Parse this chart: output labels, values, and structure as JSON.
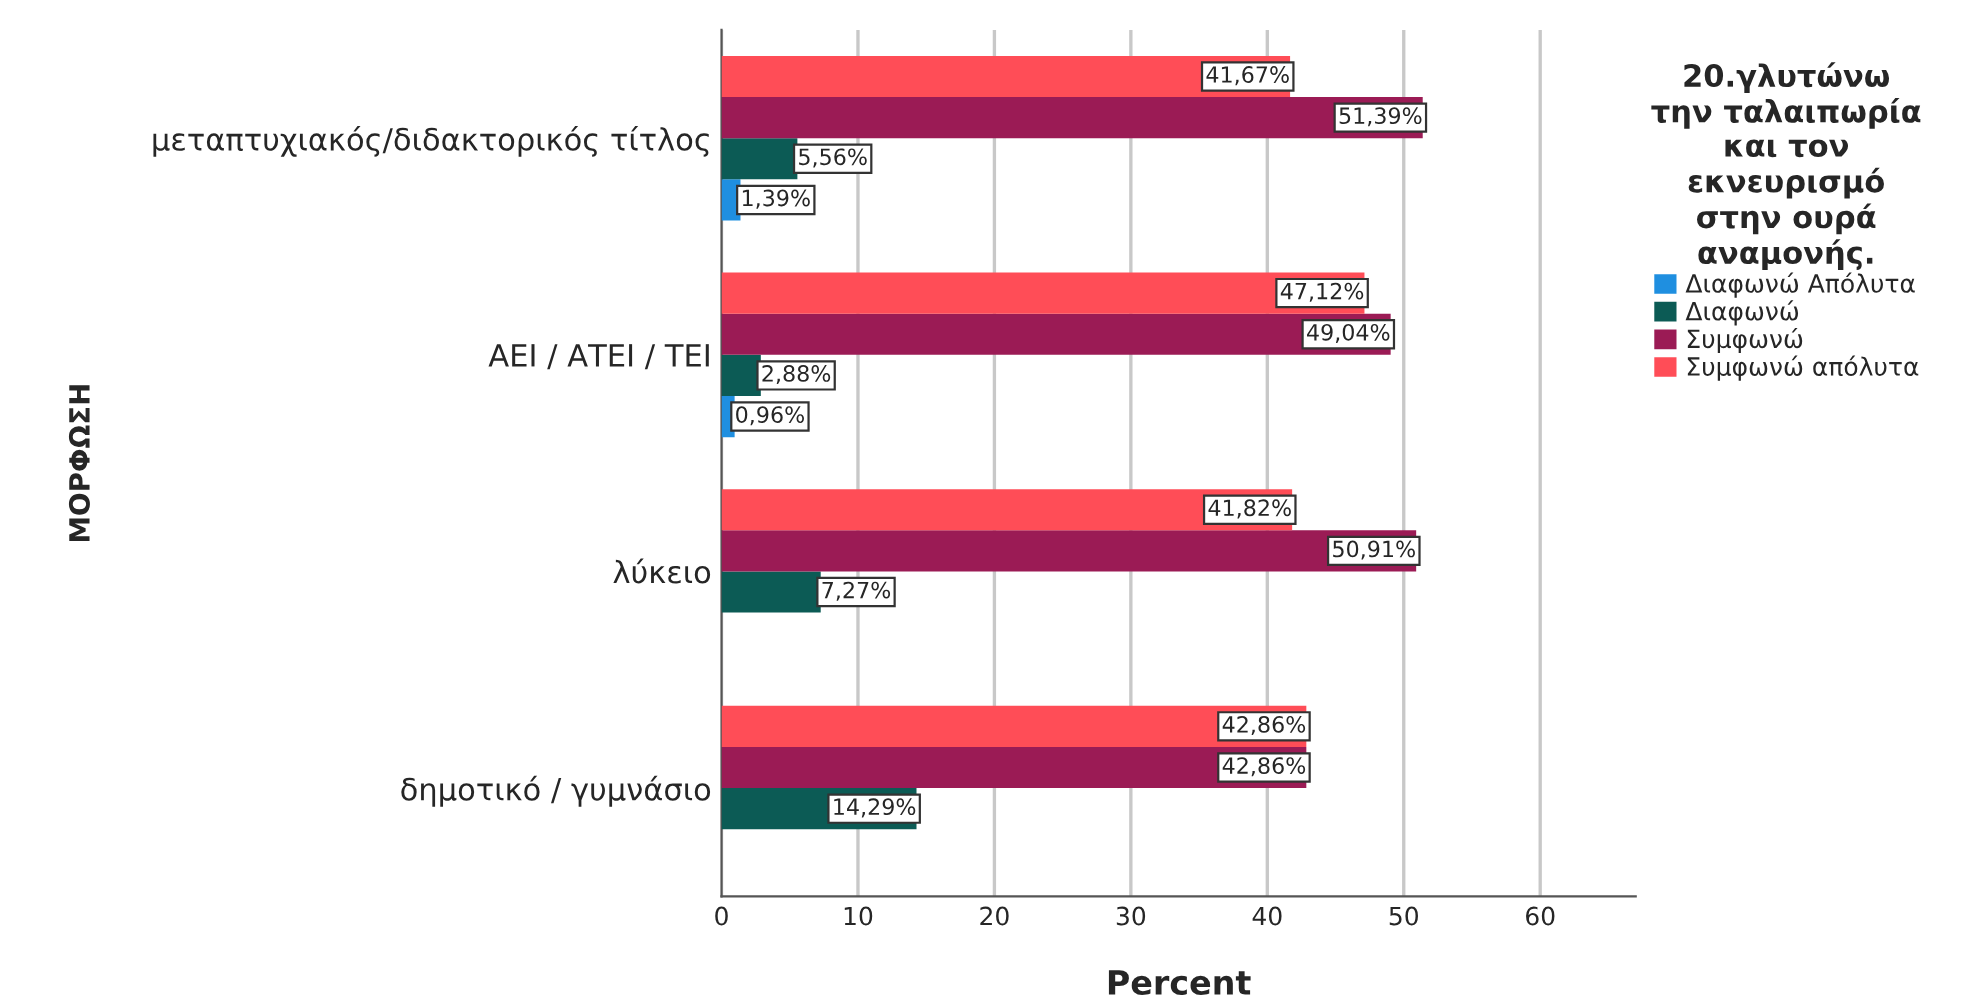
{
  "chart_data": {
    "type": "bar",
    "orientation": "horizontal",
    "categories": [
      "μεταπτυχιακός/διδακτορικός τίτλος",
      "ΑΕΙ / ΑΤΕΙ / ΤΕΙ",
      "λύκειο",
      "δημοτικό / γυμνάσιο"
    ],
    "xlabel": "Percent",
    "ylabel": "ΜΟΡΦΩΣΗ",
    "legend_title": "20.γλυτώνω\nτην ταλαιπωρία\nκαι τον\nεκνευρισμό\nστην ουρά\nαναμονής.",
    "legend": "right",
    "xlim": [
      0,
      67
    ],
    "xticks": [
      0,
      10,
      20,
      30,
      40,
      50,
      60
    ],
    "grid": "x",
    "series": [
      {
        "name": "Διαφωνώ Απόλυτα",
        "color": "#1f8fe0",
        "values": [
          1.39,
          0.96,
          null,
          null
        ],
        "value_labels": [
          "1,39%",
          "0,96%",
          null,
          null
        ]
      },
      {
        "name": "Διαφωνώ",
        "color": "#0c5b55",
        "values": [
          5.56,
          2.88,
          7.27,
          14.29
        ],
        "value_labels": [
          "5,56%",
          "2,88%",
          "7,27%",
          "14,29%"
        ]
      },
      {
        "name": "Συμφωνώ",
        "color": "#9b1b55",
        "values": [
          51.39,
          49.04,
          50.91,
          42.86
        ],
        "value_labels": [
          "51,39%",
          "49,04%",
          "50,91%",
          "42,86%"
        ]
      },
      {
        "name": "Συμφωνώ απόλυτα",
        "color": "#ff4d57",
        "values": [
          41.67,
          47.12,
          41.82,
          42.86
        ],
        "value_labels": [
          "41,67%",
          "47,12%",
          "41,82%",
          "42,86%"
        ]
      }
    ]
  }
}
